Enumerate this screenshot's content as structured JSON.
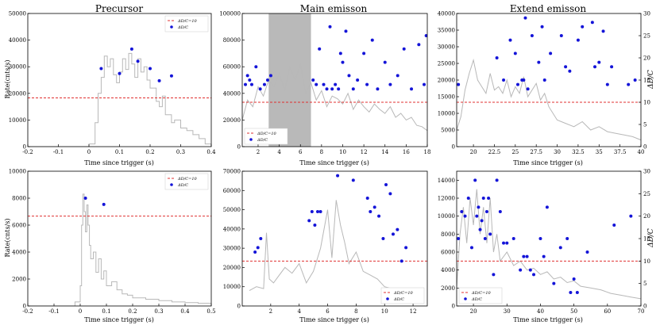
{
  "figure": {
    "y_axis_label_left": "Rate(cnts/s)",
    "y_axis_label_right": "ΔD/C",
    "x_axis_label": "Time since trigger (s)"
  },
  "chart_data": [
    {
      "id": "precursor-top",
      "type": "line",
      "title": "Precursor",
      "xlabel": "Time since trigger (s)",
      "ylabel": "Rate(cnts/s)",
      "xlim": [
        -0.2,
        0.4
      ],
      "ylim": [
        0,
        50000
      ],
      "xticks": [
        -0.2,
        -0.1,
        0.0,
        0.1,
        0.2,
        0.3,
        0.4
      ],
      "yticks": [
        0,
        10000,
        20000,
        30000,
        40000,
        50000
      ],
      "y2lim": [
        0,
        27.3
      ],
      "threshold": 10,
      "legend": [
        "ΔD/C=10",
        "ΔD/C"
      ],
      "legend_position": "top-right",
      "lightcurve": {
        "x": [
          -0.2,
          -0.05,
          0.0,
          0.02,
          0.03,
          0.04,
          0.05,
          0.06,
          0.07,
          0.08,
          0.09,
          0.1,
          0.11,
          0.12,
          0.13,
          0.14,
          0.15,
          0.16,
          0.17,
          0.18,
          0.19,
          0.2,
          0.21,
          0.22,
          0.23,
          0.24,
          0.25,
          0.26,
          0.27,
          0.28,
          0.3,
          0.32,
          0.34,
          0.36,
          0.38,
          0.4
        ],
        "y": [
          0,
          0,
          1000,
          9000,
          20000,
          26000,
          34000,
          30000,
          33000,
          27000,
          24000,
          28000,
          33000,
          29000,
          35000,
          31000,
          26000,
          33000,
          28000,
          30000,
          25000,
          22000,
          22000,
          17000,
          15000,
          19000,
          12000,
          12000,
          9000,
          10000,
          7000,
          6000,
          4500,
          3000,
          1000,
          0
        ]
      },
      "ddc_points": {
        "x": [
          0.04,
          0.1,
          0.14,
          0.16,
          0.2,
          0.23,
          0.27
        ],
        "y": [
          16,
          15,
          20,
          17.5,
          16,
          13.5,
          14.5
        ]
      }
    },
    {
      "id": "main-top",
      "type": "line",
      "title": "Main emisson",
      "xlabel": "Time since trigger (s)",
      "ylabel": "",
      "xlim": [
        0.5,
        18
      ],
      "ylim": [
        0,
        100000
      ],
      "xticks": [
        2,
        4,
        6,
        8,
        10,
        12,
        14,
        16,
        18
      ],
      "yticks": [
        0,
        20000,
        40000,
        60000,
        80000,
        100000
      ],
      "y2lim": [
        0,
        30
      ],
      "threshold": 10,
      "shaded_interval": [
        3,
        7
      ],
      "legend": [
        "ΔD/C=10",
        "ΔD/C"
      ],
      "legend_position": "bottom-left",
      "lightcurve": {
        "x": [
          0.5,
          1,
          1.5,
          2,
          2.5,
          3,
          3.5,
          4,
          4.5,
          5,
          5.5,
          6,
          6.5,
          7,
          7.5,
          8,
          8.5,
          9,
          9.5,
          10,
          10.5,
          11,
          11.5,
          12,
          12.5,
          13,
          13.5,
          14,
          14.5,
          15,
          15.5,
          16,
          16.5,
          17,
          17.5,
          18
        ],
        "y": [
          20000,
          35000,
          30000,
          45000,
          38000,
          50000,
          45000,
          55000,
          42000,
          60000,
          50000,
          62000,
          40000,
          48000,
          35000,
          42000,
          30000,
          38000,
          36000,
          32000,
          40000,
          28000,
          35000,
          30000,
          26000,
          32000,
          28000,
          25000,
          30000,
          22000,
          25000,
          20000,
          22000,
          16000,
          15000,
          12000
        ]
      },
      "ddc_points": {
        "x": [
          0.8,
          1.0,
          1.2,
          1.4,
          1.8,
          2.2,
          2.6,
          2.9,
          3.2,
          7.2,
          7.5,
          7.8,
          8.2,
          8.5,
          8.8,
          9.0,
          9.3,
          9.6,
          9.8,
          10.0,
          10.3,
          10.6,
          11.0,
          11.4,
          12.0,
          12.3,
          12.8,
          13.3,
          14.0,
          14.5,
          15.2,
          15.8,
          16.5,
          17.2,
          17.7,
          17.9
        ],
        "y": [
          14,
          16,
          15,
          14,
          18,
          13,
          14,
          15,
          16,
          15,
          14,
          22,
          14,
          13,
          27,
          13,
          14,
          13,
          21,
          19,
          26,
          16,
          13,
          15,
          21,
          14,
          24,
          13,
          19,
          14,
          16,
          22,
          13,
          23,
          14,
          25
        ]
      }
    },
    {
      "id": "extend-top",
      "type": "line",
      "title": "Extend emisson",
      "xlabel": "Time since trigger (s)",
      "ylabel": "ΔD/C",
      "xlim": [
        18,
        40
      ],
      "ylim": [
        0,
        40000
      ],
      "xticks": [
        20.0,
        22.5,
        25.0,
        27.5,
        30.0,
        32.5,
        35.0,
        37.5,
        40.0
      ],
      "yticks": [
        0,
        5000,
        10000,
        15000,
        20000,
        25000,
        30000,
        35000,
        40000
      ],
      "y2lim": [
        0,
        30
      ],
      "y2ticks": [
        0,
        5,
        10,
        15,
        20,
        25,
        30
      ],
      "threshold": 10,
      "legend": [],
      "lightcurve": {
        "x": [
          18,
          18.5,
          19,
          19.5,
          20,
          20.5,
          21,
          21.5,
          22,
          22.5,
          23,
          23.5,
          24,
          24.5,
          25,
          25.5,
          26,
          26.5,
          27,
          27.5,
          28,
          28.5,
          29,
          30,
          31,
          32,
          33,
          34,
          35,
          36,
          37,
          38,
          39,
          40
        ],
        "y": [
          5000,
          9000,
          17000,
          22000,
          26000,
          20000,
          18000,
          16000,
          22000,
          17000,
          18000,
          16000,
          20000,
          15000,
          18000,
          16000,
          21000,
          15000,
          17000,
          19000,
          14000,
          16000,
          12000,
          8000,
          7000,
          6000,
          7500,
          5000,
          6000,
          4500,
          4000,
          3500,
          3000,
          2000
        ]
      },
      "ddc_points": {
        "x": [
          18.2,
          22.8,
          23.6,
          24.4,
          25.0,
          25.3,
          25.8,
          26.0,
          26.2,
          26.5,
          27.0,
          27.8,
          28.2,
          28.5,
          29.2,
          30.5,
          31.0,
          31.5,
          32.5,
          33.0,
          34.2,
          34.5,
          35.0,
          35.5,
          36.0,
          36.5,
          38.5,
          39.3
        ],
        "y": [
          14,
          20,
          15,
          24,
          21,
          14,
          15,
          15,
          29,
          13,
          25,
          19,
          27,
          15,
          21,
          25,
          18,
          17,
          24,
          27,
          28,
          18,
          19,
          26,
          14,
          18,
          14,
          15
        ]
      }
    },
    {
      "id": "precursor-bottom",
      "type": "line",
      "title": "",
      "xlabel": "Time since trigger (s)",
      "ylabel": "Rate(cnts/s)",
      "xlim": [
        -0.2,
        0.5
      ],
      "ylim": [
        0,
        10000
      ],
      "xticks": [
        -0.2,
        -0.1,
        0.0,
        0.1,
        0.2,
        0.3,
        0.4,
        0.5
      ],
      "yticks": [
        0,
        2000,
        4000,
        6000,
        8000,
        10000
      ],
      "y2lim": [
        0,
        15
      ],
      "threshold": 10,
      "legend": [
        "ΔD/C=10",
        "ΔD/C"
      ],
      "legend_position": "top-right",
      "lightcurve": {
        "x": [
          -0.2,
          -0.05,
          -0.02,
          0.0,
          0.005,
          0.01,
          0.015,
          0.02,
          0.025,
          0.03,
          0.035,
          0.04,
          0.05,
          0.06,
          0.07,
          0.08,
          0.09,
          0.1,
          0.12,
          0.14,
          0.16,
          0.18,
          0.2,
          0.25,
          0.3,
          0.35,
          0.4,
          0.45,
          0.5
        ],
        "y": [
          0,
          0,
          300,
          1500,
          6000,
          8300,
          7000,
          5500,
          7500,
          6000,
          4500,
          3500,
          4000,
          2500,
          3500,
          2000,
          2600,
          1500,
          1800,
          1200,
          900,
          800,
          600,
          500,
          400,
          300,
          250,
          200,
          200
        ]
      },
      "ddc_points": {
        "x": [
          0.02,
          0.09
        ],
        "y": [
          12,
          11.3
        ]
      }
    },
    {
      "id": "main-bottom",
      "type": "line",
      "title": "",
      "xlabel": "Time since trigger (s)",
      "ylabel": "",
      "xlim": [
        0,
        13
      ],
      "ylim": [
        0,
        70000
      ],
      "xticks": [
        2,
        4,
        6,
        8,
        10,
        12
      ],
      "yticks": [
        0,
        10000,
        20000,
        30000,
        40000,
        50000,
        60000,
        70000
      ],
      "y2lim": [
        0,
        30
      ],
      "threshold": 10,
      "legend": [
        "ΔD/C=10",
        "ΔD/C"
      ],
      "legend_position": "bottom-right",
      "lightcurve": {
        "x": [
          0.5,
          1,
          1.5,
          1.7,
          1.9,
          2.2,
          2.5,
          3,
          3.5,
          4,
          4.5,
          5,
          5.5,
          6,
          6.3,
          6.6,
          6.9,
          7.2,
          7.5,
          8,
          8.5,
          9,
          9.5,
          10,
          10.5,
          11,
          11.5,
          12,
          12.5
        ],
        "y": [
          8000,
          10000,
          9000,
          38000,
          14000,
          12000,
          15000,
          20000,
          17000,
          22000,
          12000,
          18000,
          30000,
          50000,
          25000,
          55000,
          42000,
          33000,
          22000,
          28000,
          18000,
          16000,
          14000,
          10000,
          9000,
          7000,
          6000,
          5000,
          3000
        ]
      },
      "ddc_points": {
        "x": [
          0.9,
          1.1,
          1.3,
          4.7,
          4.9,
          5.1,
          5.3,
          5.5,
          6.7,
          7.8,
          8.8,
          9.0,
          9.3,
          9.6,
          9.9,
          10.1,
          10.4,
          10.6,
          10.9,
          11.2,
          11.5
        ],
        "y": [
          12,
          13,
          15,
          19,
          21,
          18,
          21,
          21,
          29,
          28,
          24,
          21,
          22,
          20,
          15,
          27,
          25,
          16,
          17,
          10,
          13
        ]
      }
    },
    {
      "id": "extend-bottom",
      "type": "line",
      "title": "",
      "xlabel": "Time since trigger (s)",
      "ylabel": "ΔD/C",
      "xlim": [
        15,
        70
      ],
      "ylim": [
        0,
        15000
      ],
      "xticks": [
        20,
        30,
        40,
        50,
        60,
        70
      ],
      "yticks": [
        0,
        2000,
        4000,
        6000,
        8000,
        10000,
        12000,
        14000
      ],
      "y2lim": [
        0,
        30
      ],
      "y2ticks": [
        0,
        5,
        10,
        15,
        20,
        25,
        30
      ],
      "threshold": 10,
      "legend": [
        "ΔD/C=10",
        "ΔD/C"
      ],
      "legend_position": "bottom-left",
      "lightcurve": {
        "x": [
          15,
          16,
          17,
          18,
          19,
          20,
          21,
          22,
          23,
          24,
          25,
          26,
          27,
          28,
          30,
          32,
          34,
          36,
          38,
          40,
          42,
          44,
          46,
          48,
          50,
          52,
          55,
          58,
          61,
          64,
          67,
          70
        ],
        "y": [
          2000,
          8000,
          11000,
          7000,
          12000,
          9000,
          13000,
          8000,
          11000,
          7000,
          12000,
          6000,
          8000,
          5000,
          6000,
          4500,
          5000,
          4000,
          4200,
          3500,
          3800,
          3000,
          3200,
          2600,
          2800,
          2200,
          2000,
          1800,
          1400,
          1200,
          1000,
          800
        ]
      },
      "ddc_points": {
        "x": [
          15.5,
          16.5,
          17.5,
          18.5,
          19.5,
          20.5,
          21,
          21.5,
          22,
          22.5,
          23,
          23.5,
          24,
          24.5,
          25,
          26,
          27,
          28,
          29,
          30,
          32,
          34,
          35,
          36,
          37,
          38,
          40,
          41,
          42,
          44,
          46,
          48,
          49,
          50,
          51,
          54,
          62,
          67
        ],
        "y": [
          15,
          21,
          20,
          24,
          13,
          28,
          20,
          22,
          17,
          19,
          24,
          15,
          21,
          24,
          16,
          7,
          28,
          21,
          14,
          14,
          15,
          8,
          11,
          11,
          8,
          7,
          15,
          11,
          22,
          5,
          13,
          15,
          3,
          6,
          3,
          12,
          18,
          20
        ]
      }
    }
  ]
}
